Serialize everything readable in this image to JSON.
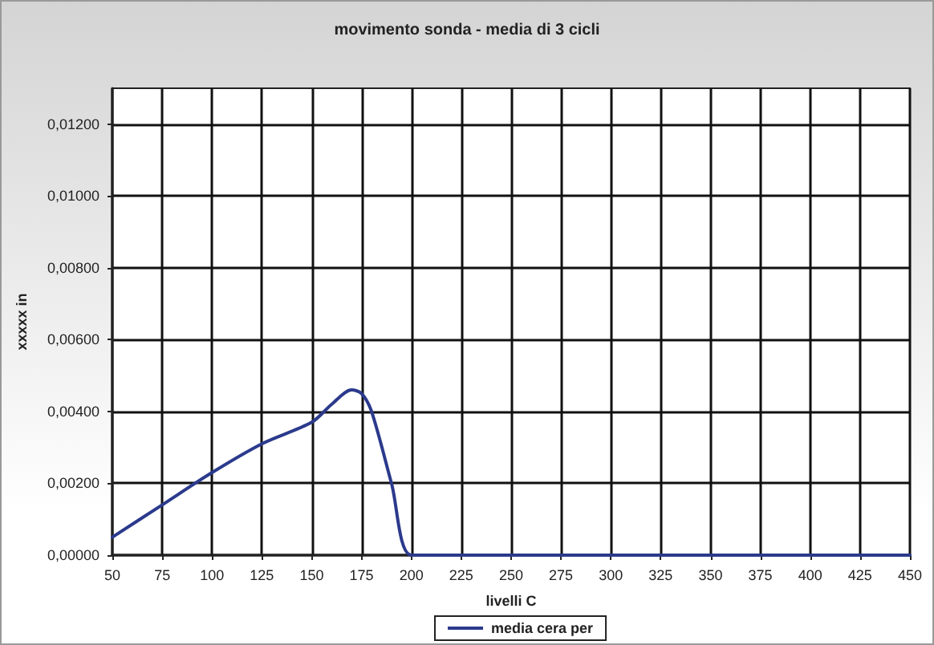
{
  "chart_data": {
    "type": "line",
    "title": "movimento sonda - media di 3 cicli",
    "xlabel": "livelli C",
    "ylabel": "xxxxx in",
    "x": [
      50,
      75,
      100,
      125,
      150,
      160,
      170,
      175,
      180,
      190,
      200,
      225,
      250,
      275,
      300,
      325,
      350,
      375,
      400,
      425,
      450
    ],
    "series": [
      {
        "name": "media cera per",
        "color": "#2b3a8c",
        "values": [
          0.0005,
          0.0014,
          0.0023,
          0.0031,
          0.0037,
          0.0042,
          0.0046,
          0.0045,
          0.004,
          0.002,
          0,
          0,
          0,
          0,
          0,
          0,
          0,
          0,
          0,
          0,
          0
        ]
      }
    ],
    "xlim": [
      50,
      450
    ],
    "xticks": [
      50,
      75,
      100,
      125,
      150,
      175,
      200,
      225,
      250,
      275,
      300,
      325,
      350,
      375,
      400,
      425,
      450
    ],
    "ylim": [
      0,
      0.013
    ],
    "yticks": [
      {
        "value": 0,
        "label": "0,00000"
      },
      {
        "value": 0.002,
        "label": "0,00200"
      },
      {
        "value": 0.004,
        "label": "0,00400"
      },
      {
        "value": 0.006,
        "label": "0,00600"
      },
      {
        "value": 0.008,
        "label": "0,00800"
      },
      {
        "value": 0.01,
        "label": "0,01000"
      },
      {
        "value": 0.012,
        "label": "0,01200"
      }
    ],
    "grid": true,
    "legend": "bottom",
    "marker": "none",
    "line_style": "solid"
  }
}
